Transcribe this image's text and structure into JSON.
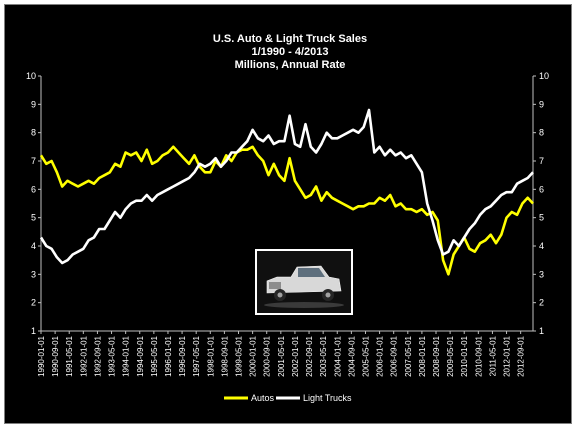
{
  "chart_data": {
    "type": "line",
    "title": "U.S. Auto & Light Truck  Sales",
    "subtitle": "1/1990 - 4/2013",
    "subtitle2": "Millions, Annual  Rate",
    "ylim": [
      1,
      10
    ],
    "yticks": [
      1,
      2,
      3,
      4,
      5,
      6,
      7,
      8,
      9,
      10
    ],
    "xticks": [
      "1990-01-01",
      "1990-09-01",
      "1991-05-01",
      "1992-01-01",
      "1992-09-01",
      "1993-05-01",
      "1994-01-01",
      "1994-09-01",
      "1995-05-01",
      "1996-01-01",
      "1996-09-01",
      "1997-05-01",
      "1998-01-01",
      "1998-09-01",
      "1999-05-01",
      "2000-01-01",
      "2000-09-01",
      "2001-05-01",
      "2002-01-01",
      "2002-09-01",
      "2003-05-01",
      "2004-01-01",
      "2004-09-01",
      "2005-05-01",
      "2006-01-01",
      "2006-09-01",
      "2007-05-01",
      "2008-01-01",
      "2008-09-01",
      "2009-05-01",
      "2010-01-01",
      "2010-09-01",
      "2011-05-01",
      "2012-01-01",
      "2012-09-01"
    ],
    "xlim": [
      "1990-01",
      "2013-04"
    ],
    "legend_position": "bottom",
    "grid": false,
    "series": [
      {
        "name": "Autos",
        "color": "#ffff00",
        "points": [
          [
            "1990-01",
            7.2
          ],
          [
            "1990-04",
            6.9
          ],
          [
            "1990-07",
            7.0
          ],
          [
            "1990-10",
            6.6
          ],
          [
            "1991-01",
            6.1
          ],
          [
            "1991-04",
            6.3
          ],
          [
            "1991-07",
            6.2
          ],
          [
            "1991-10",
            6.1
          ],
          [
            "1992-01",
            6.2
          ],
          [
            "1992-04",
            6.3
          ],
          [
            "1992-07",
            6.2
          ],
          [
            "1992-10",
            6.4
          ],
          [
            "1993-01",
            6.5
          ],
          [
            "1993-04",
            6.6
          ],
          [
            "1993-07",
            6.9
          ],
          [
            "1993-10",
            6.8
          ],
          [
            "1994-01",
            7.3
          ],
          [
            "1994-04",
            7.2
          ],
          [
            "1994-07",
            7.3
          ],
          [
            "1994-10",
            7.0
          ],
          [
            "1995-01",
            7.4
          ],
          [
            "1995-04",
            6.9
          ],
          [
            "1995-07",
            7.0
          ],
          [
            "1995-10",
            7.2
          ],
          [
            "1996-01",
            7.3
          ],
          [
            "1996-04",
            7.5
          ],
          [
            "1996-07",
            7.3
          ],
          [
            "1996-10",
            7.1
          ],
          [
            "1997-01",
            6.9
          ],
          [
            "1997-04",
            7.2
          ],
          [
            "1997-07",
            6.8
          ],
          [
            "1997-10",
            6.6
          ],
          [
            "1998-01",
            6.6
          ],
          [
            "1998-04",
            7.0
          ],
          [
            "1998-07",
            6.8
          ],
          [
            "1998-10",
            7.2
          ],
          [
            "1999-01",
            7.0
          ],
          [
            "1999-04",
            7.3
          ],
          [
            "1999-07",
            7.4
          ],
          [
            "1999-10",
            7.4
          ],
          [
            "2000-01",
            7.5
          ],
          [
            "2000-04",
            7.2
          ],
          [
            "2000-07",
            7.0
          ],
          [
            "2000-10",
            6.5
          ],
          [
            "2001-01",
            6.9
          ],
          [
            "2001-04",
            6.5
          ],
          [
            "2001-07",
            6.3
          ],
          [
            "2001-10",
            7.1
          ],
          [
            "2002-01",
            6.3
          ],
          [
            "2002-04",
            6.0
          ],
          [
            "2002-07",
            5.7
          ],
          [
            "2002-10",
            5.8
          ],
          [
            "2003-01",
            6.1
          ],
          [
            "2003-04",
            5.6
          ],
          [
            "2003-07",
            5.9
          ],
          [
            "2003-10",
            5.7
          ],
          [
            "2004-01",
            5.6
          ],
          [
            "2004-04",
            5.5
          ],
          [
            "2004-07",
            5.4
          ],
          [
            "2004-10",
            5.3
          ],
          [
            "2005-01",
            5.4
          ],
          [
            "2005-04",
            5.4
          ],
          [
            "2005-07",
            5.5
          ],
          [
            "2005-10",
            5.5
          ],
          [
            "2006-01",
            5.7
          ],
          [
            "2006-04",
            5.6
          ],
          [
            "2006-07",
            5.8
          ],
          [
            "2006-10",
            5.4
          ],
          [
            "2007-01",
            5.5
          ],
          [
            "2007-04",
            5.3
          ],
          [
            "2007-07",
            5.3
          ],
          [
            "2007-10",
            5.2
          ],
          [
            "2008-01",
            5.3
          ],
          [
            "2008-04",
            5.1
          ],
          [
            "2008-07",
            5.2
          ],
          [
            "2008-10",
            4.9
          ],
          [
            "2009-01",
            3.5
          ],
          [
            "2009-04",
            3.0
          ],
          [
            "2009-07",
            3.7
          ],
          [
            "2009-10",
            4.0
          ],
          [
            "2010-01",
            4.3
          ],
          [
            "2010-04",
            3.9
          ],
          [
            "2010-07",
            3.8
          ],
          [
            "2010-10",
            4.1
          ],
          [
            "2011-01",
            4.2
          ],
          [
            "2011-04",
            4.4
          ],
          [
            "2011-07",
            4.1
          ],
          [
            "2011-10",
            4.4
          ],
          [
            "2012-01",
            5.0
          ],
          [
            "2012-04",
            5.2
          ],
          [
            "2012-07",
            5.1
          ],
          [
            "2012-10",
            5.5
          ],
          [
            "2013-01",
            5.7
          ],
          [
            "2013-04",
            5.5
          ]
        ]
      },
      {
        "name": "Light Trucks",
        "color": "#ffffff",
        "points": [
          [
            "1990-01",
            4.3
          ],
          [
            "1990-04",
            4.0
          ],
          [
            "1990-07",
            3.9
          ],
          [
            "1990-10",
            3.6
          ],
          [
            "1991-01",
            3.4
          ],
          [
            "1991-04",
            3.5
          ],
          [
            "1991-07",
            3.7
          ],
          [
            "1991-10",
            3.8
          ],
          [
            "1992-01",
            3.9
          ],
          [
            "1992-04",
            4.2
          ],
          [
            "1992-07",
            4.3
          ],
          [
            "1992-10",
            4.6
          ],
          [
            "1993-01",
            4.6
          ],
          [
            "1993-04",
            4.9
          ],
          [
            "1993-07",
            5.2
          ],
          [
            "1993-10",
            5.0
          ],
          [
            "1994-01",
            5.3
          ],
          [
            "1994-04",
            5.5
          ],
          [
            "1994-07",
            5.6
          ],
          [
            "1994-10",
            5.6
          ],
          [
            "1995-01",
            5.8
          ],
          [
            "1995-04",
            5.6
          ],
          [
            "1995-07",
            5.8
          ],
          [
            "1995-10",
            5.9
          ],
          [
            "1996-01",
            6.0
          ],
          [
            "1996-04",
            6.1
          ],
          [
            "1996-07",
            6.2
          ],
          [
            "1996-10",
            6.3
          ],
          [
            "1997-01",
            6.4
          ],
          [
            "1997-04",
            6.6
          ],
          [
            "1997-07",
            6.9
          ],
          [
            "1997-10",
            6.8
          ],
          [
            "1998-01",
            6.9
          ],
          [
            "1998-04",
            7.1
          ],
          [
            "1998-07",
            6.8
          ],
          [
            "1998-10",
            7.0
          ],
          [
            "1999-01",
            7.3
          ],
          [
            "1999-04",
            7.3
          ],
          [
            "1999-07",
            7.5
          ],
          [
            "1999-10",
            7.7
          ],
          [
            "2000-01",
            8.1
          ],
          [
            "2000-04",
            7.8
          ],
          [
            "2000-07",
            7.7
          ],
          [
            "2000-10",
            7.9
          ],
          [
            "2001-01",
            7.6
          ],
          [
            "2001-04",
            7.7
          ],
          [
            "2001-07",
            7.7
          ],
          [
            "2001-10",
            8.6
          ],
          [
            "2002-01",
            7.6
          ],
          [
            "2002-04",
            7.5
          ],
          [
            "2002-07",
            8.3
          ],
          [
            "2002-10",
            7.5
          ],
          [
            "2003-01",
            7.3
          ],
          [
            "2003-04",
            7.6
          ],
          [
            "2003-07",
            8.0
          ],
          [
            "2003-10",
            7.8
          ],
          [
            "2004-01",
            7.8
          ],
          [
            "2004-04",
            7.9
          ],
          [
            "2004-07",
            8.0
          ],
          [
            "2004-10",
            8.1
          ],
          [
            "2005-01",
            8.0
          ],
          [
            "2005-04",
            8.2
          ],
          [
            "2005-07",
            8.8
          ],
          [
            "2005-10",
            7.3
          ],
          [
            "2006-01",
            7.5
          ],
          [
            "2006-04",
            7.2
          ],
          [
            "2006-07",
            7.4
          ],
          [
            "2006-10",
            7.2
          ],
          [
            "2007-01",
            7.3
          ],
          [
            "2007-04",
            7.1
          ],
          [
            "2007-07",
            7.2
          ],
          [
            "2007-10",
            6.9
          ],
          [
            "2008-01",
            6.6
          ],
          [
            "2008-04",
            5.5
          ],
          [
            "2008-07",
            4.9
          ],
          [
            "2008-10",
            4.2
          ],
          [
            "2009-01",
            3.7
          ],
          [
            "2009-04",
            3.8
          ],
          [
            "2009-07",
            4.2
          ],
          [
            "2009-10",
            4.0
          ],
          [
            "2010-01",
            4.3
          ],
          [
            "2010-04",
            4.6
          ],
          [
            "2010-07",
            4.8
          ],
          [
            "2010-10",
            5.1
          ],
          [
            "2011-01",
            5.3
          ],
          [
            "2011-04",
            5.4
          ],
          [
            "2011-07",
            5.6
          ],
          [
            "2011-10",
            5.8
          ],
          [
            "2012-01",
            5.9
          ],
          [
            "2012-04",
            5.9
          ],
          [
            "2012-07",
            6.2
          ],
          [
            "2012-10",
            6.3
          ],
          [
            "2013-01",
            6.4
          ],
          [
            "2013-04",
            6.6
          ]
        ]
      }
    ],
    "image": "pickup-truck-photo"
  }
}
